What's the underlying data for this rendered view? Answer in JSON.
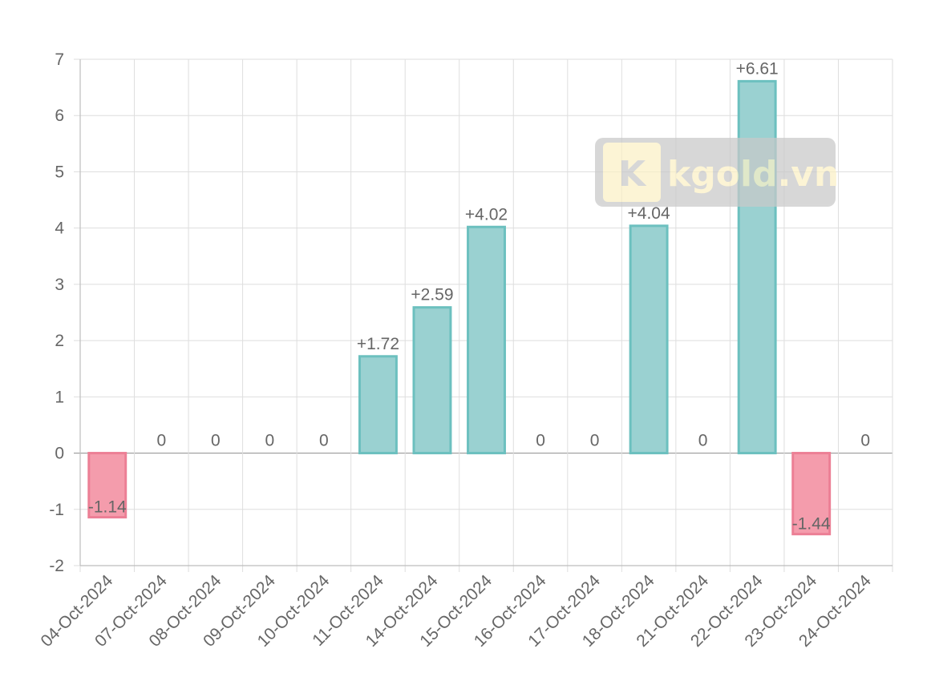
{
  "chart_data": {
    "type": "bar",
    "categories": [
      "04-Oct-2024",
      "07-Oct-2024",
      "08-Oct-2024",
      "09-Oct-2024",
      "10-Oct-2024",
      "11-Oct-2024",
      "14-Oct-2024",
      "15-Oct-2024",
      "16-Oct-2024",
      "17-Oct-2024",
      "18-Oct-2024",
      "21-Oct-2024",
      "22-Oct-2024",
      "23-Oct-2024",
      "24-Oct-2024"
    ],
    "values": [
      -1.14,
      0,
      0,
      0,
      0,
      1.72,
      2.59,
      4.02,
      0,
      0,
      4.04,
      0,
      6.61,
      -1.44,
      0
    ],
    "data_labels": [
      "-1.14",
      "0",
      "0",
      "0",
      "0",
      "+1.72",
      "+2.59",
      "+4.02",
      "0",
      "0",
      "+4.04",
      "0",
      "+6.61",
      "-1.44",
      "0"
    ],
    "ylim": [
      -2,
      7
    ],
    "yticks": [
      -2,
      -1,
      0,
      1,
      2,
      3,
      4,
      5,
      6,
      7
    ],
    "grid": true,
    "legend": "none",
    "colors": {
      "positive_fill": "#9ad1d1",
      "positive_stroke": "#6cc0bf",
      "negative_fill": "#f49cac",
      "negative_stroke": "#ec7f95"
    }
  },
  "watermark": {
    "logo_letter": "K",
    "text": "kgold.vn"
  }
}
